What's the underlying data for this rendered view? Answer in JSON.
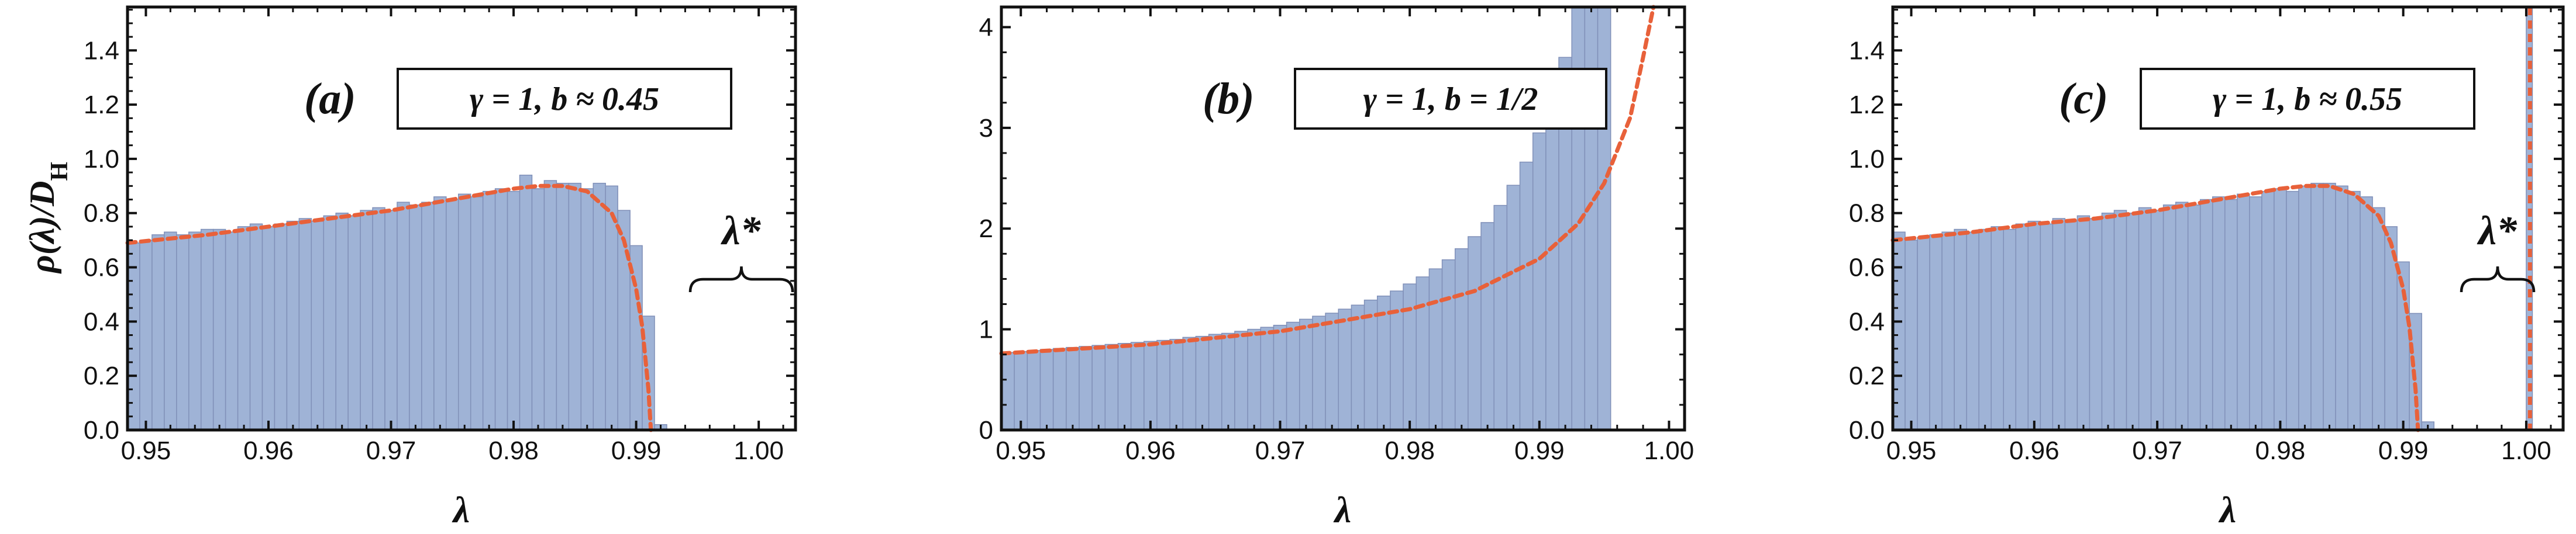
{
  "figure": {
    "ylabel": "ρ(λ)/D_H",
    "colors": {
      "bar_fill": "#9fb3d6",
      "bar_edge": "#8090b8",
      "fit_line": "#e8613a",
      "frame": "#111111",
      "text": "#111111"
    }
  },
  "chart_data": [
    {
      "type": "bar",
      "panel": "a",
      "label": "(a)",
      "annotation": "γ = 1,  b ≈ 0.45",
      "brace_label": "λ*",
      "xlabel": "λ",
      "ylabel": "ρ(λ)/D_H",
      "xlim": [
        0.9485,
        1.003
      ],
      "ylim": [
        0,
        1.56
      ],
      "xticks": [
        0.95,
        0.96,
        0.97,
        0.98,
        0.99,
        1.0
      ],
      "xtick_labels": [
        "0.95",
        "0.96",
        "0.97",
        "0.98",
        "0.99",
        "1.00"
      ],
      "yticks": [
        0,
        0.2,
        0.4,
        0.6,
        0.8,
        1.0,
        1.2,
        1.4
      ],
      "ytick_labels": [
        "0.0",
        "0.2",
        "0.4",
        "0.6",
        "0.8",
        "1.0",
        "1.2",
        "1.4"
      ],
      "bin_start": 0.9485,
      "bin_width": 0.001,
      "values": [
        0.69,
        0.7,
        0.72,
        0.73,
        0.72,
        0.73,
        0.74,
        0.74,
        0.73,
        0.75,
        0.76,
        0.75,
        0.76,
        0.77,
        0.78,
        0.77,
        0.79,
        0.8,
        0.79,
        0.81,
        0.82,
        0.81,
        0.84,
        0.83,
        0.84,
        0.86,
        0.85,
        0.87,
        0.86,
        0.88,
        0.89,
        0.88,
        0.94,
        0.89,
        0.92,
        0.91,
        0.91,
        0.89,
        0.91,
        0.9,
        0.81,
        0.68,
        0.42,
        0.02
      ],
      "fit_x": [
        0.9485,
        0.955,
        0.96,
        0.965,
        0.97,
        0.975,
        0.98,
        0.982,
        0.984,
        0.986,
        0.988,
        0.989,
        0.99,
        0.9905,
        0.991,
        0.9912
      ],
      "fit_y": [
        0.69,
        0.72,
        0.75,
        0.78,
        0.81,
        0.85,
        0.89,
        0.9,
        0.9,
        0.88,
        0.8,
        0.7,
        0.52,
        0.38,
        0.15,
        0.0
      ]
    },
    {
      "type": "bar",
      "panel": "b",
      "label": "(b)",
      "annotation": "γ = 1,  b = 1/2",
      "xlabel": "λ",
      "xlim": [
        0.9485,
        1.0012
      ],
      "ylim": [
        0,
        4.2
      ],
      "xticks": [
        0.95,
        0.96,
        0.97,
        0.98,
        0.99,
        1.0
      ],
      "xtick_labels": [
        "0.95",
        "0.96",
        "0.97",
        "0.98",
        "0.99",
        "1.00"
      ],
      "yticks": [
        0,
        1,
        2,
        3,
        4
      ],
      "ytick_labels": [
        "0",
        "1",
        "2",
        "3",
        "4"
      ],
      "bin_start": 0.9485,
      "bin_width": 0.001,
      "values": [
        0.77,
        0.78,
        0.79,
        0.8,
        0.81,
        0.82,
        0.83,
        0.84,
        0.85,
        0.86,
        0.87,
        0.88,
        0.89,
        0.9,
        0.92,
        0.93,
        0.95,
        0.96,
        0.98,
        1.0,
        1.02,
        1.04,
        1.07,
        1.1,
        1.13,
        1.16,
        1.2,
        1.24,
        1.29,
        1.33,
        1.38,
        1.45,
        1.52,
        1.6,
        1.69,
        1.8,
        1.92,
        2.06,
        2.23,
        2.43,
        2.66,
        2.95,
        3.27,
        3.7,
        4.2,
        4.2,
        4.2
      ],
      "fit_x": [
        0.9485,
        0.96,
        0.97,
        0.98,
        0.985,
        0.99,
        0.993,
        0.995,
        0.997,
        0.998,
        0.9988
      ],
      "fit_y": [
        0.76,
        0.85,
        0.98,
        1.2,
        1.38,
        1.7,
        2.05,
        2.45,
        3.1,
        3.7,
        4.2
      ]
    },
    {
      "type": "bar",
      "panel": "c",
      "label": "(c)",
      "annotation": "γ = 1,  b ≈ 0.55",
      "brace_label": "λ*",
      "xlabel": "λ",
      "xlim": [
        0.9485,
        1.003
      ],
      "ylim": [
        0,
        1.56
      ],
      "xticks": [
        0.95,
        0.96,
        0.97,
        0.98,
        0.99,
        1.0
      ],
      "xtick_labels": [
        "0.95",
        "0.96",
        "0.97",
        "0.98",
        "0.99",
        "1.00"
      ],
      "yticks": [
        0,
        0.2,
        0.4,
        0.6,
        0.8,
        1.0,
        1.2,
        1.4
      ],
      "ytick_labels": [
        "0.0",
        "0.2",
        "0.4",
        "0.6",
        "0.8",
        "1.0",
        "1.2",
        "1.4"
      ],
      "bin_start": 0.9485,
      "bin_width": 0.001,
      "values": [
        0.73,
        0.7,
        0.71,
        0.72,
        0.73,
        0.74,
        0.73,
        0.74,
        0.75,
        0.74,
        0.76,
        0.77,
        0.76,
        0.78,
        0.77,
        0.79,
        0.78,
        0.8,
        0.81,
        0.8,
        0.82,
        0.81,
        0.83,
        0.84,
        0.83,
        0.85,
        0.86,
        0.85,
        0.87,
        0.86,
        0.88,
        0.89,
        0.88,
        0.9,
        0.91,
        0.91,
        0.9,
        0.88,
        0.86,
        0.82,
        0.75,
        0.62,
        0.43,
        0.03
      ],
      "spike": {
        "x_from": 1.0,
        "x_to": 1.0005,
        "value": 1.56
      },
      "fit_x": [
        0.9485,
        0.955,
        0.96,
        0.965,
        0.97,
        0.975,
        0.98,
        0.982,
        0.984,
        0.986,
        0.988,
        0.989,
        0.99,
        0.9905,
        0.991,
        0.9912
      ],
      "fit_y": [
        0.7,
        0.73,
        0.76,
        0.78,
        0.81,
        0.85,
        0.89,
        0.9,
        0.9,
        0.87,
        0.79,
        0.69,
        0.52,
        0.38,
        0.15,
        0.0
      ],
      "fit_vertical_x": 1.0003
    }
  ]
}
